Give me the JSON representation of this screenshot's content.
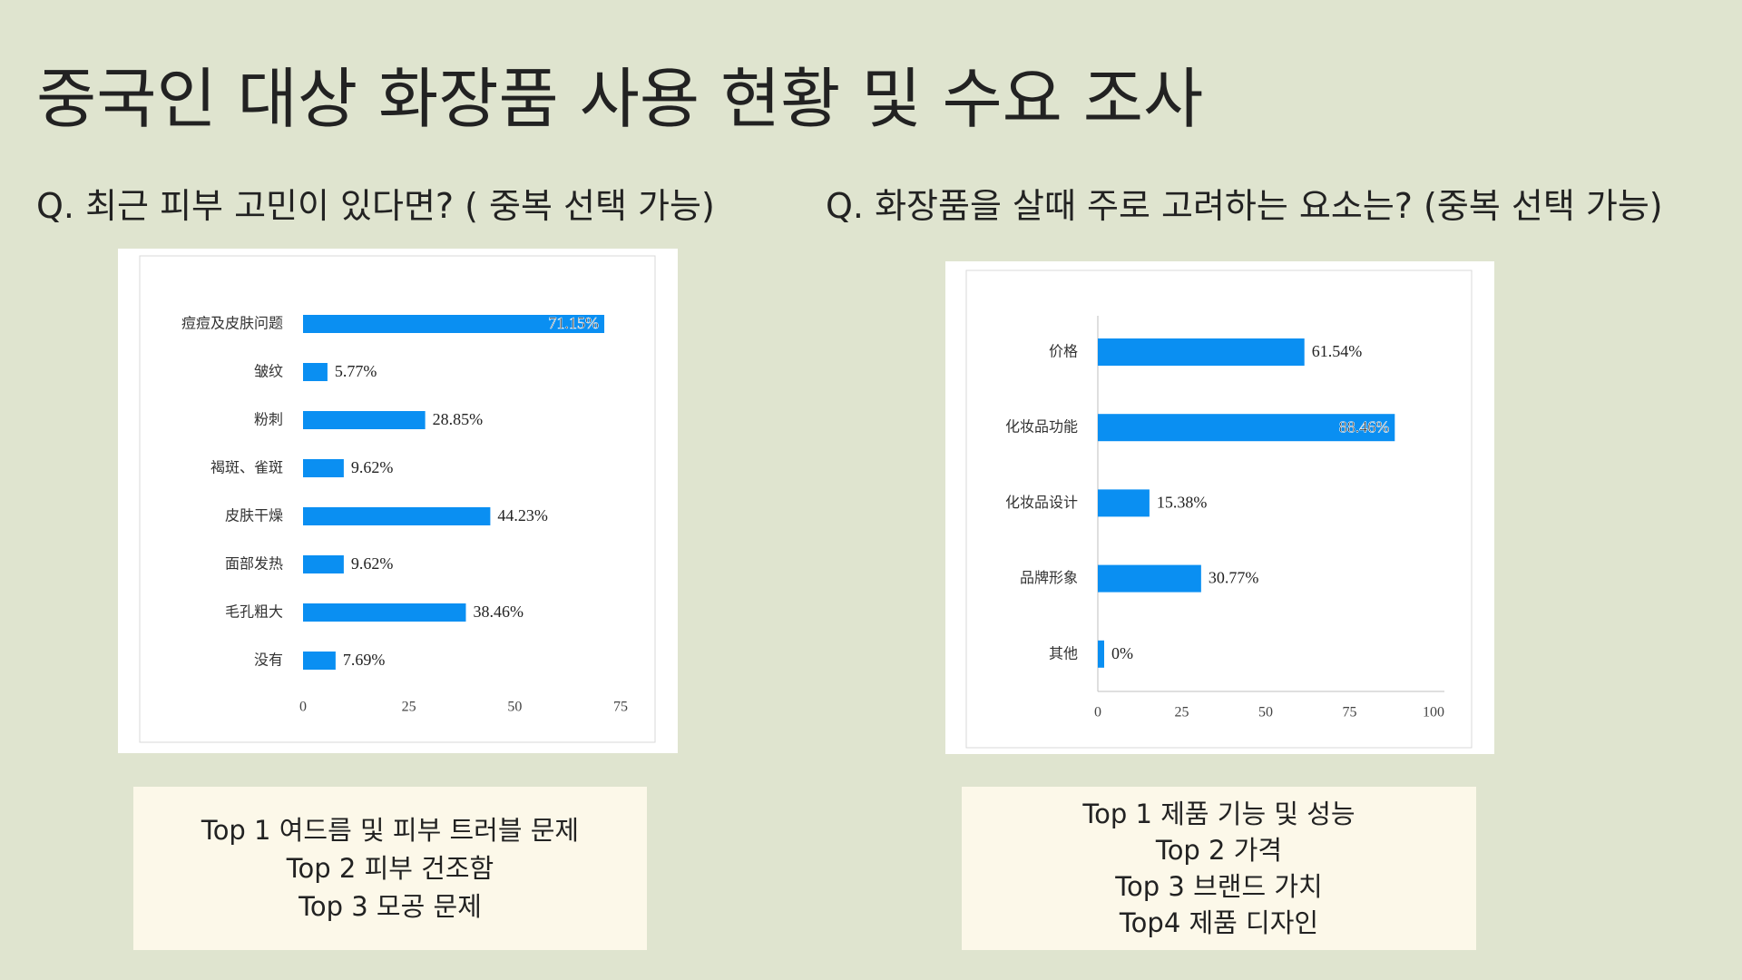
{
  "title": "중국인 대상 화장품 사용 현황 및 수요 조사",
  "questions": [
    "Q.  최근 피부 고민이 있다면? ( 중복 선택 가능)",
    "Q.  화장품을 살때 주로 고려하는 요소는? (중복 선택 가능)"
  ],
  "summaries": [
    [
      "Top 1 여드름 및 피부 트러블 문제",
      "Top 2  피부 건조함",
      "Top 3 모공 문제"
    ],
    [
      "Top 1 제품 기능 및 성능",
      "Top 2  가격",
      "Top 3 브랜드 가치",
      "Top4  제품 디자인"
    ]
  ],
  "chart_data": [
    {
      "type": "barh",
      "categories": [
        "痘痘及皮肤问题",
        "皱纹",
        "粉刺",
        "褐斑、雀斑",
        "皮肤干燥",
        "面部发热",
        "毛孔粗大",
        "没有"
      ],
      "values": [
        71.15,
        5.77,
        28.85,
        9.62,
        44.23,
        9.62,
        38.46,
        7.69
      ],
      "value_labels": [
        "71.15%",
        "5.77%",
        "28.85%",
        "9.62%",
        "44.23%",
        "9.62%",
        "38.46%",
        "7.69%"
      ],
      "color": "#0a8ff2",
      "xlim": [
        0,
        75
      ],
      "xticks": [
        0,
        25,
        50,
        75
      ],
      "axis_lines": false
    },
    {
      "type": "barh",
      "categories": [
        "价格",
        "化妆品功能",
        "化妆品设计",
        "品牌形象",
        "其他"
      ],
      "values": [
        61.54,
        88.46,
        15.38,
        30.77,
        0
      ],
      "value_labels": [
        "61.54%",
        "88.46%",
        "15.38%",
        "30.77%",
        "0%"
      ],
      "color": "#0a8ff2",
      "xlim": [
        0,
        100
      ],
      "xticks": [
        0,
        25,
        50,
        75,
        100
      ],
      "axis_lines": true
    }
  ]
}
